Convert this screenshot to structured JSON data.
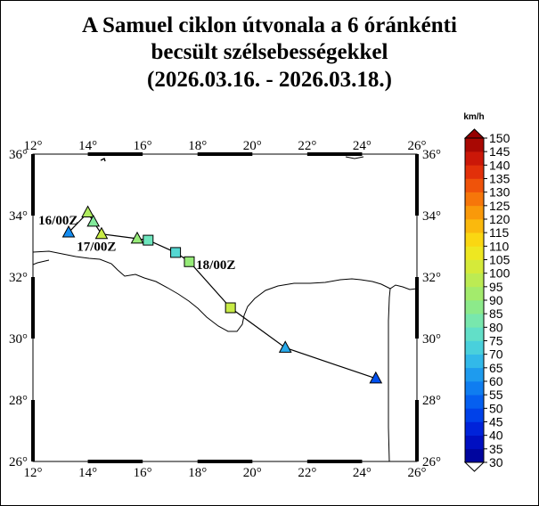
{
  "title": {
    "line1": "A Samuel ciklon útvonala a 6 óránkénti",
    "line2": "becsült szélsebességekkel",
    "line3": "(2026.03.16. - 2026.03.18.)"
  },
  "map": {
    "lon_range": [
      12,
      26
    ],
    "lat_range": [
      26,
      36
    ],
    "lon_ticks": [
      {
        "value": 12,
        "label": "12°"
      },
      {
        "value": 14,
        "label": "14°"
      },
      {
        "value": 16,
        "label": "16°"
      },
      {
        "value": 18,
        "label": "18°"
      },
      {
        "value": 20,
        "label": "20°"
      },
      {
        "value": 22,
        "label": "22°"
      },
      {
        "value": 24,
        "label": "24°"
      },
      {
        "value": 26,
        "label": "26°"
      }
    ],
    "lat_ticks": [
      {
        "value": 26,
        "label": "26°"
      },
      {
        "value": 28,
        "label": "28°"
      },
      {
        "value": 30,
        "label": "30°"
      },
      {
        "value": 32,
        "label": "32°"
      },
      {
        "value": 34,
        "label": "34°"
      },
      {
        "value": 36,
        "label": "36°"
      }
    ],
    "border_color": "#000000",
    "coast_color": "#000000"
  },
  "track": {
    "line_color": "#000000",
    "points": [
      {
        "lon": 13.3,
        "lat": 33.45,
        "wind": 60,
        "marker": "triangle"
      },
      {
        "lon": 14.0,
        "lat": 34.1,
        "wind": 95,
        "marker": "triangle"
      },
      {
        "lon": 14.2,
        "lat": 33.8,
        "wind": 85,
        "marker": "triangle"
      },
      {
        "lon": 14.5,
        "lat": 33.4,
        "wind": 100,
        "marker": "triangle"
      },
      {
        "lon": 15.8,
        "lat": 33.25,
        "wind": 90,
        "marker": "triangle"
      },
      {
        "lon": 16.2,
        "lat": 33.2,
        "wind": 80,
        "marker": "square"
      },
      {
        "lon": 17.2,
        "lat": 32.8,
        "wind": 75,
        "marker": "square"
      },
      {
        "lon": 17.7,
        "lat": 32.5,
        "wind": 90,
        "marker": "square"
      },
      {
        "lon": 19.2,
        "lat": 31.0,
        "wind": 100,
        "marker": "square"
      },
      {
        "lon": 21.2,
        "lat": 29.7,
        "wind": 65,
        "marker": "triangle"
      },
      {
        "lon": 24.5,
        "lat": 28.7,
        "wind": 50,
        "marker": "triangle"
      }
    ],
    "labels": [
      {
        "text": "16/00Z",
        "lon": 12.2,
        "lat": 33.85
      },
      {
        "text": "17/00Z",
        "lon": 13.6,
        "lat": 33.0
      },
      {
        "text": "18/00Z",
        "lon": 17.95,
        "lat": 32.4
      }
    ]
  },
  "colorbar": {
    "unit": "km/h",
    "min": 30,
    "max": 150,
    "step": 5,
    "labels": [
      "150",
      "145",
      "140",
      "135",
      "130",
      "125",
      "120",
      "115",
      "110",
      "105",
      "100",
      "95",
      "90",
      "85",
      "80",
      "75",
      "70",
      "65",
      "60",
      "55",
      "50",
      "45",
      "40",
      "35",
      "30"
    ]
  }
}
